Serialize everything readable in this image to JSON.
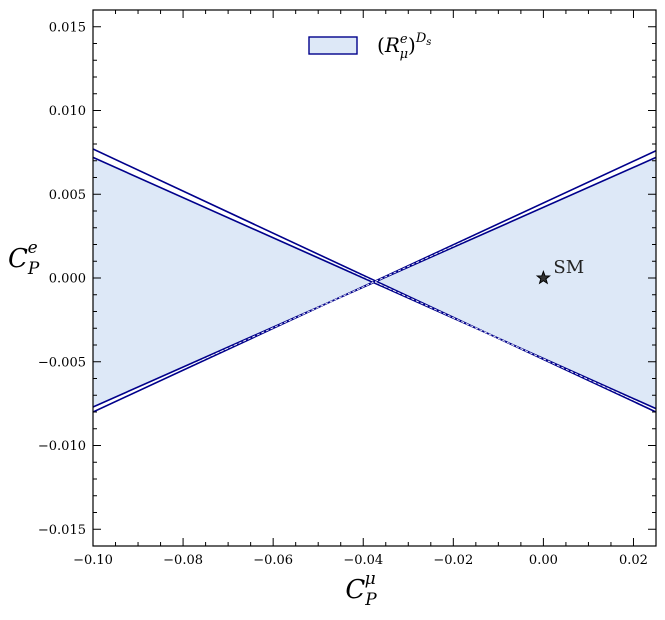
{
  "chart_data": {
    "type": "area",
    "xlim": [
      -0.1,
      0.025
    ],
    "ylim": [
      -0.016,
      0.016
    ],
    "x_ticks": [
      -0.1,
      -0.08,
      -0.06,
      -0.04,
      -0.02,
      0.0,
      0.02
    ],
    "x_tick_labels": [
      "−0.10",
      "−0.08",
      "−0.06",
      "−0.04",
      "−0.02",
      "0.00",
      "0.02"
    ],
    "y_ticks": [
      0.015,
      0.01,
      0.005,
      0.0,
      -0.005,
      -0.01,
      -0.015
    ],
    "y_tick_labels": [
      "0.015",
      "0.010",
      "0.005",
      "0.000",
      "−0.005",
      "−0.010",
      "−0.015"
    ],
    "xlabel": {
      "base": "C",
      "sub": "P",
      "sup": "μ"
    },
    "ylabel": {
      "base": "C",
      "sub": "P",
      "sup": "e"
    },
    "legend": {
      "placement": "top-center",
      "label": {
        "open": "(",
        "base": "R",
        "sup": "e",
        "sub": "μ",
        "close": ")",
        "outer_sup": "D",
        "outer_sup_sub": "s"
      }
    },
    "grid": false,
    "region": {
      "name": "(Rμ^e)^Ds",
      "fill_color": "#dde8f7",
      "edge_color": "#00008b",
      "vertex": [
        -0.0375,
        -0.0002
      ],
      "boundary_lines": [
        {
          "x": [
            -0.1,
            0.025
          ],
          "y": [
            0.0072,
            -0.0078
          ],
          "role": "inner"
        },
        {
          "x": [
            -0.1,
            0.025
          ],
          "y": [
            0.0077,
            -0.008
          ],
          "role": "outer"
        },
        {
          "x": [
            -0.1,
            0.025
          ],
          "y": [
            -0.0077,
            0.0072
          ],
          "role": "inner"
        },
        {
          "x": [
            -0.1,
            0.025
          ],
          "y": [
            -0.008,
            0.0076
          ],
          "role": "outer"
        }
      ]
    },
    "points": [
      {
        "label": "SM",
        "x": 0.0,
        "y": 0.0,
        "marker": "star"
      }
    ]
  },
  "colors": {
    "fill": "#dde8f7",
    "edge": "#00008b",
    "axis": "#000000"
  }
}
